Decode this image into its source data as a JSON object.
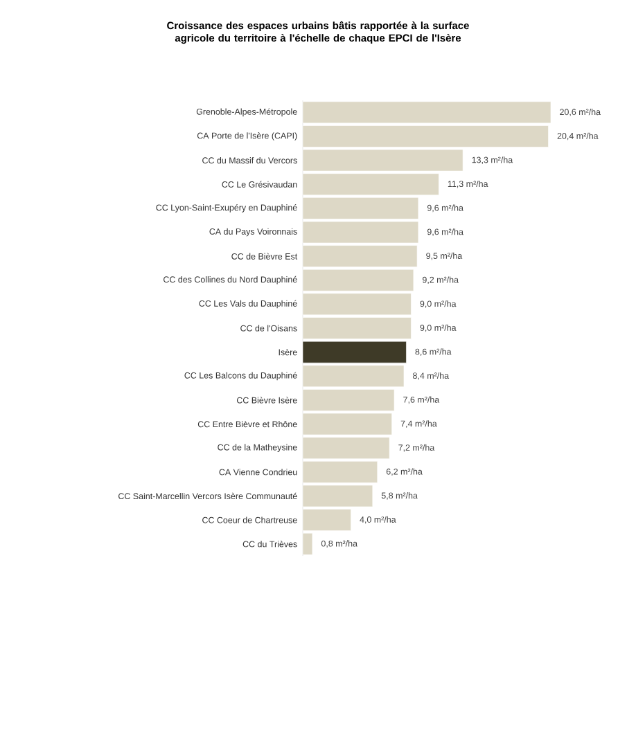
{
  "chart_data": {
    "type": "bar",
    "orientation": "horizontal",
    "title": "Croissance des espaces urbains bâtis rapportée à la surface agricole du territoire à l'échelle de chaque EPCI de l'Isère",
    "categories": [
      "Grenoble-Alpes-Métropole",
      "CA Porte de l'Isère (CAPI)",
      "CC du Massif du Vercors",
      "CC Le Grésivaudan",
      "CC Lyon-Saint-Exupéry en Dauphiné",
      "CA du Pays Voironnais",
      "CC de Bièvre Est",
      "CC des Collines du Nord Dauphiné",
      "CC Les Vals du Dauphiné",
      "CC de l'Oisans",
      "Isère",
      "CC Les Balcons du Dauphiné",
      "CC Bièvre Isère",
      "CC Entre Bièvre et Rhône",
      "CC de la Matheysine",
      "CA Vienne Condrieu",
      "CC Saint-Marcellin Vercors Isère Communauté",
      "CC Coeur de Chartreuse",
      "CC du Trièves"
    ],
    "values": [
      20.6,
      20.4,
      13.3,
      11.3,
      9.6,
      9.6,
      9.5,
      9.2,
      9.0,
      9.0,
      8.6,
      8.4,
      7.6,
      7.4,
      7.2,
      6.2,
      5.8,
      4.0,
      0.8
    ],
    "value_labels": [
      "20,6 m²/ha",
      "20,4 m²/ha",
      "13,3 m²/ha",
      "11,3 m²/ha",
      "9,6 m²/ha",
      "9,6 m²/ha",
      "9,5 m²/ha",
      "9,2 m²/ha",
      "9,0 m²/ha",
      "9,0 m²/ha",
      "8,6 m²/ha",
      "8,4 m²/ha",
      "7,6 m²/ha",
      "7,4 m²/ha",
      "7,2 m²/ha",
      "6,2 m²/ha",
      "5,8 m²/ha",
      "4,0 m²/ha",
      "0,8 m²/ha"
    ],
    "colors": [
      "#ddd8c6",
      "#ddd8c6",
      "#ddd8c6",
      "#ddd8c6",
      "#ddd8c6",
      "#ddd8c6",
      "#ddd8c6",
      "#ddd8c6",
      "#ddd8c6",
      "#ddd8c6",
      "#3e3a27",
      "#ddd8c6",
      "#ddd8c6",
      "#ddd8c6",
      "#ddd8c6",
      "#ddd8c6",
      "#ddd8c6",
      "#ddd8c6",
      "#ddd8c6"
    ]
  }
}
